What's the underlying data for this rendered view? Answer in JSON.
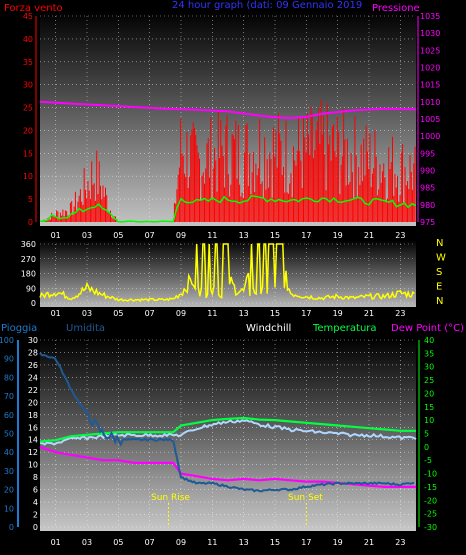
{
  "top_panel": {
    "left_title": "Forza vento",
    "center_title": "24 hour graph (dati: 09 Gennaio 2019",
    "right_title": "Pressione",
    "left_ticks": [
      "45",
      "40",
      "35",
      "30",
      "25",
      "20",
      "15",
      "10",
      "5",
      "0"
    ],
    "right_ticks": [
      "1035",
      "1030",
      "1025",
      "1020",
      "1015",
      "1010",
      "1005",
      "1000",
      "995",
      "990",
      "985",
      "980",
      "975"
    ],
    "x_ticks": [
      "01",
      "03",
      "05",
      "07",
      "09",
      "11",
      "13",
      "15",
      "17",
      "19",
      "21",
      "23"
    ]
  },
  "wind_panel": {
    "left_ticks": [
      "360",
      "270",
      "180",
      "90",
      "0"
    ],
    "right_letters": [
      "N",
      "W",
      "S",
      "E",
      "N"
    ],
    "x_ticks": [
      "01",
      "03",
      "05",
      "07",
      "09",
      "11",
      "13",
      "15",
      "17",
      "19",
      "21",
      "23"
    ]
  },
  "bottom_panel": {
    "label_rain": "Pioggia",
    "label_hum": "Umidita",
    "label_windchill": "Windchill",
    "label_temp": "Temperatura",
    "label_dew": "Dew Point (°C)",
    "rain_ticks": [
      "100",
      "90",
      "80",
      "70",
      "60",
      "50",
      "40",
      "30",
      "20",
      "10",
      "0"
    ],
    "hum_ticks": [
      "30",
      "28",
      "26",
      "24",
      "22",
      "20",
      "18",
      "16",
      "14",
      "12",
      "10",
      "8",
      "6",
      "4",
      "2",
      "0"
    ],
    "temp_ticks": [
      "40",
      "35",
      "30",
      "25",
      "20",
      "15",
      "10",
      "5",
      "0",
      "-5",
      "-10",
      "-15",
      "-20",
      "-25",
      "-30"
    ],
    "sunrise": "Sun Rise",
    "sunset": "Sun Set",
    "x_ticks": [
      "01",
      "03",
      "05",
      "07",
      "09",
      "11",
      "13",
      "15",
      "17",
      "19",
      "21",
      "23"
    ]
  },
  "colors": {
    "wind": "#ff0000",
    "gust": "#00ff00",
    "pressure": "#ff00ff",
    "direction": "#ffff00",
    "humidity": "#1e5a96",
    "temperature": "#00ff40",
    "windchill": "#b0d8ff",
    "dewpoint": "#ff00ff",
    "rain_axis": "#1e7bd0",
    "temp_axis": "#00ff00"
  },
  "chart_data": [
    {
      "type": "line",
      "title": "24 hour graph (dati: 09 Gennaio 2019",
      "x_unit": "hour",
      "xlim": [
        0,
        24
      ],
      "ylim_left": [
        0,
        45
      ],
      "ylim_right": [
        975,
        1035
      ],
      "series": [
        {
          "name": "Forza vento",
          "axis": "left",
          "x": [
            0,
            1,
            2,
            3,
            3.5,
            4,
            4.5,
            5,
            6,
            7,
            8,
            8.5,
            9,
            10,
            11,
            12,
            13,
            14,
            15,
            16,
            17,
            18,
            19,
            20,
            21,
            22,
            23,
            24
          ],
          "values": [
            0,
            2,
            3,
            9,
            12,
            8,
            3,
            0,
            0,
            0,
            0,
            0,
            18,
            14,
            16,
            17,
            16,
            18,
            17,
            16,
            17,
            18,
            17,
            16,
            15,
            14,
            13,
            12
          ]
        },
        {
          "name": "Pressione",
          "axis": "right",
          "x": [
            0,
            2,
            4,
            6,
            8,
            10,
            12,
            14,
            15,
            16,
            17,
            18,
            20,
            22,
            24
          ],
          "values": [
            1010,
            1009.5,
            1009,
            1008.5,
            1008,
            1007.7,
            1007.2,
            1006,
            1005.5,
            1005.3,
            1005.6,
            1006.5,
            1007.5,
            1008,
            1007.8
          ]
        }
      ]
    },
    {
      "type": "line",
      "x_unit": "hour",
      "xlim": [
        0,
        24
      ],
      "ylim": [
        0,
        360
      ],
      "series": [
        {
          "name": "direction",
          "x": [
            0,
            1,
            2,
            3,
            4,
            5,
            6,
            7,
            8,
            8.5,
            9,
            10,
            10.5,
            11,
            11.5,
            12,
            12.5,
            13,
            14,
            15,
            16,
            17,
            18,
            19,
            20,
            21,
            22,
            23,
            24
          ],
          "values": [
            40,
            70,
            30,
            90,
            50,
            20,
            20,
            20,
            20,
            25,
            60,
            180,
            300,
            90,
            280,
            150,
            80,
            70,
            300,
            330,
            60,
            40,
            30,
            40,
            30,
            40,
            40,
            60,
            50
          ]
        }
      ]
    },
    {
      "type": "line",
      "x_unit": "hour",
      "xlim": [
        0,
        24
      ],
      "ylim_temp": [
        -30,
        40
      ],
      "series": [
        {
          "name": "Umidita",
          "axis": "humidity",
          "x": [
            0,
            1,
            2,
            3,
            4,
            5,
            8.5,
            9,
            10,
            11,
            12,
            13,
            14,
            15,
            16,
            17,
            18,
            19,
            20,
            21,
            22,
            23,
            24
          ],
          "values": [
            27.8,
            27,
            22,
            18,
            15,
            14,
            14,
            8,
            7,
            7,
            6.5,
            6,
            5.8,
            6,
            6,
            6.5,
            6.8,
            7,
            7,
            7,
            7,
            6.8,
            7.2
          ]
        },
        {
          "name": "Temperatura",
          "axis": "temp",
          "x": [
            0,
            1,
            2,
            3,
            4,
            5,
            8.5,
            9,
            10,
            11,
            12,
            13,
            14,
            15,
            16,
            17,
            18,
            19,
            20,
            21,
            22,
            23,
            24
          ],
          "values": [
            2,
            2.5,
            4,
            4.5,
            5,
            5.5,
            5.5,
            8,
            9,
            10,
            10.5,
            10.8,
            10.2,
            10,
            9.5,
            9,
            8.5,
            8,
            7.5,
            7,
            6.5,
            6,
            6
          ]
        },
        {
          "name": "Windchill",
          "axis": "temp",
          "x": [
            0,
            1,
            2,
            3,
            4,
            5,
            8.5,
            9,
            10,
            11,
            12,
            13,
            14,
            15,
            16,
            17,
            18,
            19,
            20,
            21,
            22,
            23,
            24
          ],
          "values": [
            1.5,
            2,
            3.5,
            4,
            4.5,
            5,
            5,
            5,
            7.5,
            9,
            10,
            10.5,
            9,
            8,
            7,
            6.5,
            6,
            5.5,
            5,
            5,
            4.5,
            4,
            4
          ]
        },
        {
          "name": "Dew Point (°C)",
          "axis": "temp",
          "x": [
            0,
            1,
            2,
            3,
            4,
            5,
            6,
            8.5,
            9,
            10,
            11,
            12,
            13,
            14,
            15,
            16,
            17,
            18,
            19,
            20,
            21,
            22,
            23,
            24
          ],
          "values": [
            0,
            -2,
            -3,
            -4,
            -5,
            -5,
            -6,
            -6,
            -10,
            -11,
            -12,
            -12.5,
            -12,
            -12.5,
            -12,
            -12.5,
            -13,
            -13,
            -13.5,
            -14,
            -14.5,
            -15,
            -15,
            -15
          ]
        }
      ]
    }
  ]
}
